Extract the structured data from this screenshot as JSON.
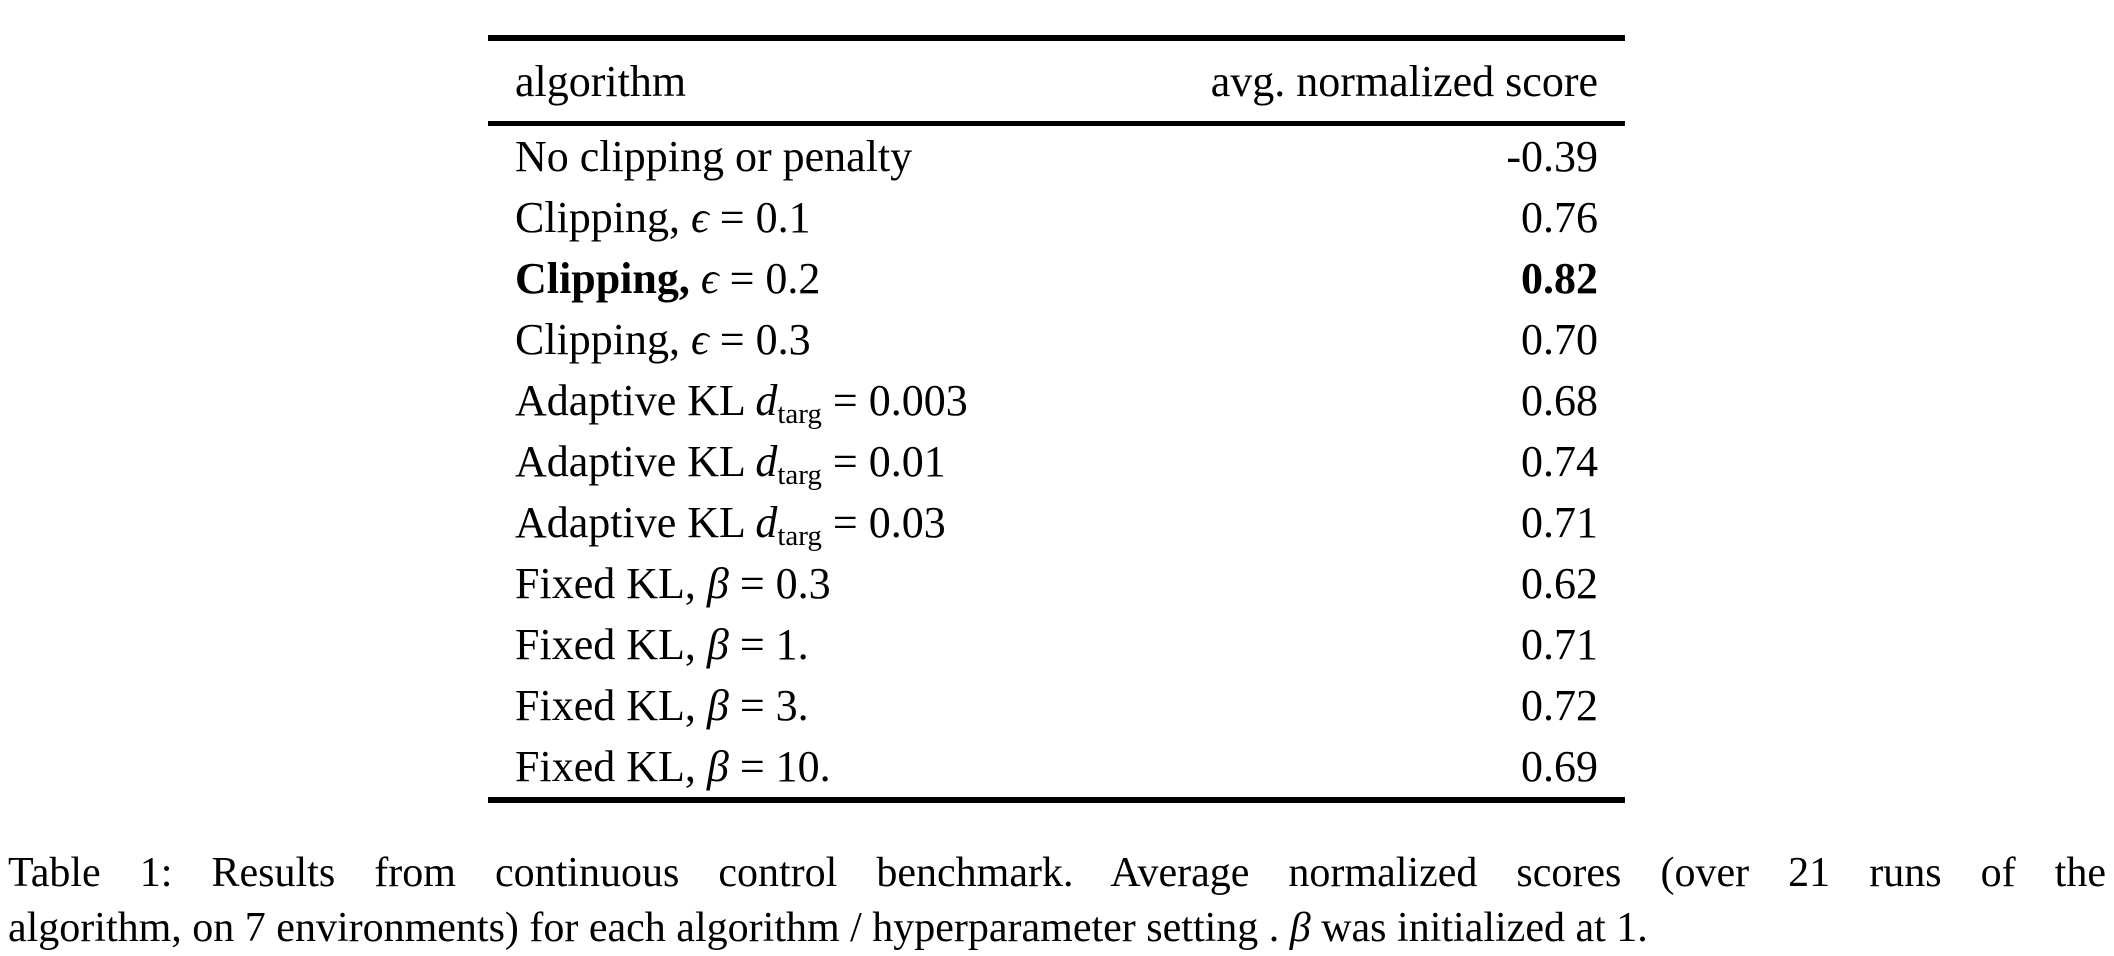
{
  "table": {
    "header": {
      "col1": "algorithm",
      "col2": "avg. normalized score"
    },
    "rows": [
      {
        "prefix": "No clipping or penalty",
        "var": "",
        "sub": "",
        "suffix": "",
        "score": "-0.39",
        "bold": false
      },
      {
        "prefix": "Clipping, ",
        "var": "ϵ",
        "sub": "",
        "suffix": " = 0.1",
        "score": "0.76",
        "bold": false
      },
      {
        "prefix": "Clipping, ",
        "var": "ϵ",
        "sub": "",
        "suffix": " = 0.2",
        "score": "0.82",
        "bold": true
      },
      {
        "prefix": "Clipping, ",
        "var": "ϵ",
        "sub": "",
        "suffix": " = 0.3",
        "score": "0.70",
        "bold": false
      },
      {
        "prefix": "Adaptive KL ",
        "var": "d",
        "sub": "targ",
        "suffix": " = 0.003",
        "score": "0.68",
        "bold": false
      },
      {
        "prefix": "Adaptive KL ",
        "var": "d",
        "sub": "targ",
        "suffix": " = 0.01",
        "score": "0.74",
        "bold": false
      },
      {
        "prefix": "Adaptive KL ",
        "var": "d",
        "sub": "targ",
        "suffix": " = 0.03",
        "score": "0.71",
        "bold": false
      },
      {
        "prefix": "Fixed KL, ",
        "var": "β",
        "sub": "",
        "suffix": " = 0.3",
        "score": "0.62",
        "bold": false
      },
      {
        "prefix": "Fixed KL, ",
        "var": "β",
        "sub": "",
        "suffix": " = 1.",
        "score": "0.71",
        "bold": false
      },
      {
        "prefix": "Fixed KL, ",
        "var": "β",
        "sub": "",
        "suffix": " = 3.",
        "score": "0.72",
        "bold": false
      },
      {
        "prefix": "Fixed KL, ",
        "var": "β",
        "sub": "",
        "suffix": " = 10.",
        "score": "0.69",
        "bold": false
      }
    ]
  },
  "caption": {
    "line1": "Table 1:  Results from continuous control benchmark.  Average normalized scores (over 21 runs of the",
    "line2_before_beta": "algorithm, on 7 environments) for each algorithm / hyperparameter setting . ",
    "beta": "β",
    "line2_after_beta": " was initialized at 1."
  }
}
